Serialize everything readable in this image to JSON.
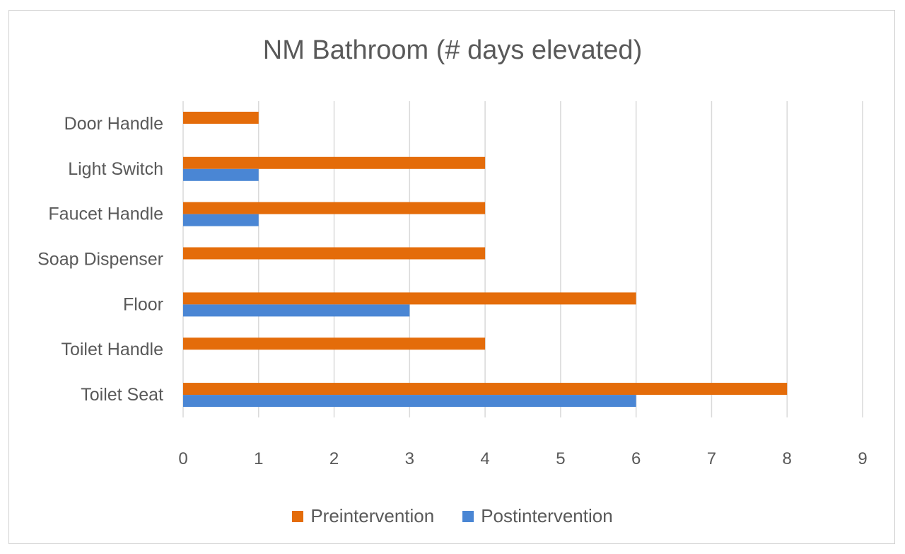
{
  "chart_data": {
    "type": "bar",
    "orientation": "horizontal",
    "title": "NM Bathroom (# days elevated)",
    "xlabel": "",
    "ylabel": "",
    "categories": [
      "Toilet Seat",
      "Toilet Handle",
      "Floor",
      "Soap Dispenser",
      "Faucet Handle",
      "Light Switch",
      "Door Handle"
    ],
    "series": [
      {
        "name": "Preintervention",
        "color": "#E46C0A",
        "values": [
          8,
          4,
          6,
          4,
          4,
          4,
          1
        ]
      },
      {
        "name": "Postintervention",
        "color": "#4A86D4",
        "values": [
          6,
          0,
          3,
          0,
          1,
          1,
          0
        ]
      }
    ],
    "xlim": [
      0,
      9
    ],
    "xticks": [
      0,
      1,
      2,
      3,
      4,
      5,
      6,
      7,
      8,
      9
    ],
    "grid": "vertical",
    "legend_position": "bottom"
  }
}
